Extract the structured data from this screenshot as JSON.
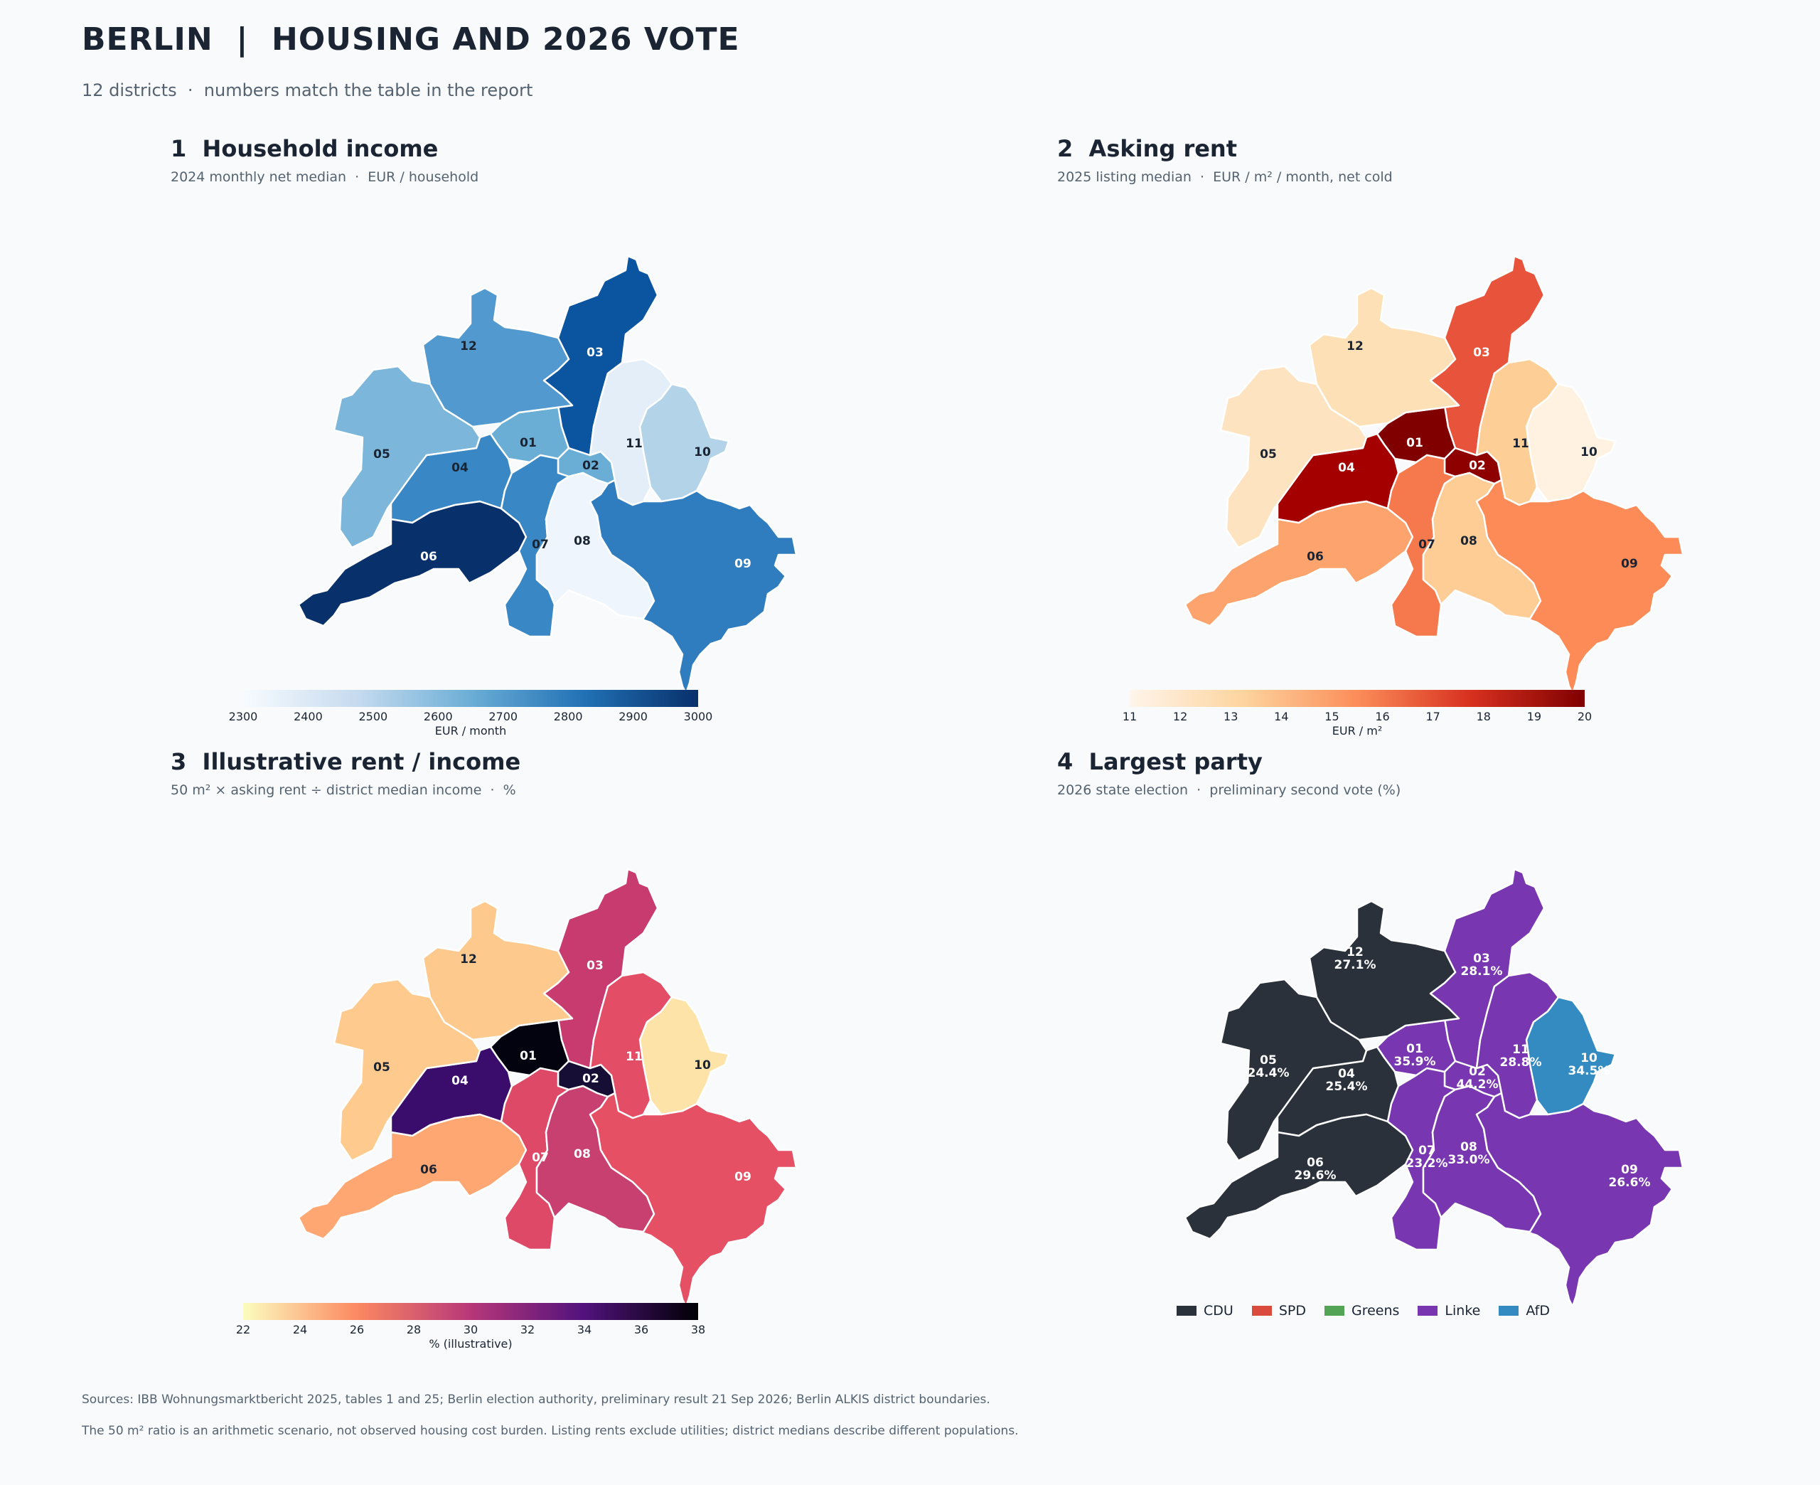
{
  "header": {
    "title": "BERLIN  |  HOUSING AND 2026 VOTE",
    "subtitle": "12 districts  ·  numbers match the table in the report"
  },
  "panels": [
    {
      "title": "1  Household income",
      "subtitle": "2024 monthly net median  ·  EUR / household"
    },
    {
      "title": "2  Asking rent",
      "subtitle": "2025 listing median  ·  EUR / m² / month, net cold"
    },
    {
      "title": "3  Illustrative rent / income",
      "subtitle": "50 m² × asking rent ÷ district median income  ·  %"
    },
    {
      "title": "4  Largest party",
      "subtitle": "2026 state election  ·  preliminary second vote (%)"
    }
  ],
  "colorbars": [
    {
      "label": "EUR / month",
      "ticks": [
        "2300",
        "2400",
        "2500",
        "2600",
        "2700",
        "2800",
        "2900",
        "3000"
      ],
      "colors": [
        "#f7fbff",
        "#c6dbef",
        "#6baed6",
        "#2171b5",
        "#08306b"
      ]
    },
    {
      "label": "EUR / m²",
      "ticks": [
        "11",
        "12",
        "13",
        "14",
        "15",
        "16",
        "17",
        "18",
        "19",
        "20"
      ],
      "colors": [
        "#fff5eb",
        "#fdd49e",
        "#fc8d59",
        "#d7301f",
        "#7f0000"
      ]
    },
    {
      "label": "%  (illustrative)",
      "ticks": [
        "22",
        "24",
        "26",
        "28",
        "30",
        "32",
        "34",
        "36",
        "38"
      ],
      "colors": [
        "#fcfdbf",
        "#fc8961",
        "#b73779",
        "#51127c",
        "#000004"
      ]
    }
  ],
  "legend": [
    {
      "name": "CDU",
      "color": "#2b313b"
    },
    {
      "name": "SPD",
      "color": "#d94c3d"
    },
    {
      "name": "Greens",
      "color": "#53a454"
    },
    {
      "name": "Linke",
      "color": "#7837b0"
    },
    {
      "name": "AfD",
      "color": "#338bc2"
    }
  ],
  "districts": [
    "01",
    "02",
    "03",
    "04",
    "05",
    "06",
    "07",
    "08",
    "09",
    "10",
    "11",
    "12"
  ],
  "income_colors": {
    "01": "#6aaed6",
    "02": "#6aaed6",
    "03": "#0b55a0",
    "04": "#3a87c5",
    "05": "#7cb6db",
    "06": "#08306b",
    "07": "#3a87c5",
    "08": "#eef5fc",
    "09": "#2f7dbf",
    "10": "#b3d3e9",
    "11": "#e4eef9",
    "12": "#5199cf"
  },
  "rent_colors": {
    "01": "#800000",
    "02": "#8e0000",
    "03": "#e8543b",
    "04": "#a50000",
    "05": "#fee3c0",
    "06": "#fda46e",
    "07": "#f5794d",
    "08": "#fdcd95",
    "09": "#fc8b57",
    "10": "#fff2e1",
    "11": "#fdcf97",
    "12": "#fee0b6"
  },
  "ratio_colors": {
    "01": "#03020f",
    "02": "#170e36",
    "03": "#c83b6f",
    "04": "#3a0d6d",
    "05": "#feca8d",
    "06": "#fea772",
    "07": "#de4968",
    "08": "#c7406f",
    "09": "#e55064",
    "10": "#fde3a7",
    "11": "#e34d65",
    "12": "#fec98c"
  },
  "party_colors": {
    "01": "#7837b0",
    "02": "#7837b0",
    "03": "#7837b0",
    "04": "#2b313b",
    "05": "#2b313b",
    "06": "#2b313b",
    "07": "#7837b0",
    "08": "#7837b0",
    "09": "#7837b0",
    "10": "#338bc2",
    "11": "#7837b0",
    "12": "#2b313b"
  },
  "label_dark": {
    "income": [
      "05",
      "12",
      "01",
      "04",
      "02",
      "11",
      "10",
      "08",
      "07"
    ],
    "rent": [
      "05",
      "12",
      "11",
      "10",
      "08",
      "06",
      "07",
      "09"
    ],
    "ratio": [
      "05",
      "12",
      "10",
      "06"
    ]
  },
  "vote_share": {
    "01": "35.9%",
    "02": "44.2%",
    "03": "28.1%",
    "04": "25.4%",
    "05": "24.4%",
    "06": "29.6%",
    "07": "23.2%",
    "08": "33.0%",
    "09": "26.6%",
    "10": "34.5%",
    "11": "28.8%",
    "12": "27.1%"
  },
  "footer": {
    "sources": "Sources: IBB Wohnungsmarktbericht 2025, tables 1 and 25; Berlin election authority, preliminary result 21 Sep 2026; Berlin ALKIS district boundaries.",
    "note": "The 50 m² ratio is an arithmetic scenario, not observed housing cost burden. Listing rents exclude utilities; district medians describe different populations."
  }
}
